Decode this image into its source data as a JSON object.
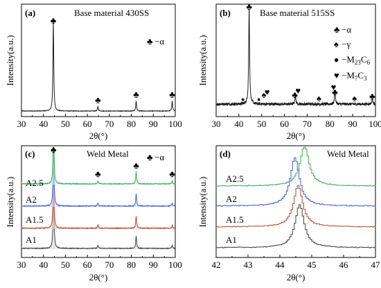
{
  "colors": {
    "black": "#1a1a1a",
    "A1": "#404040",
    "A1.5": "#b5492f",
    "A2": "#3b5fd6",
    "A2.5": "#3ea85a",
    "fill_A1": "#d9d9d9",
    "fill_A1.5": "#f6d4c9",
    "fill_A2": "#d3dcf8",
    "fill_A2.5": "#d3f1db"
  },
  "marker_symbols": {
    "alpha": "♣",
    "gamma": "♠",
    "m23c6": "●",
    "m7c3": "♥"
  },
  "chart_data": [
    {
      "id": "a",
      "type": "line",
      "panel_label": "(a)",
      "title": "Base material 430SS",
      "xlabel": "2θ(°)",
      "ylabel": "Intensity(a.u.)",
      "xlim": [
        30,
        100
      ],
      "xticks": [
        "30",
        "40",
        "50",
        "60",
        "70",
        "80",
        "90",
        "100"
      ],
      "legend": [
        {
          "symbol": "♣",
          "text": "−α"
        }
      ],
      "peaks": [
        {
          "x": 44.5,
          "height": 1.0,
          "phase": "alpha"
        },
        {
          "x": 64.8,
          "height": 0.05,
          "phase": "alpha"
        },
        {
          "x": 82.2,
          "height": 0.11,
          "phase": "alpha"
        },
        {
          "x": 98.6,
          "height": 0.11,
          "phase": "alpha"
        }
      ],
      "markers": [
        {
          "x": 44.5,
          "symbol": "♣"
        },
        {
          "x": 64.8,
          "symbol": "♣"
        },
        {
          "x": 82.2,
          "symbol": "♣"
        },
        {
          "x": 98.6,
          "symbol": "♣"
        }
      ]
    },
    {
      "id": "b",
      "type": "line",
      "panel_label": "(b)",
      "title": "Base material 515SS",
      "xlabel": "2θ(°)",
      "ylabel": "Intensity(a.u.)",
      "xlim": [
        30,
        100
      ],
      "xticks": [
        "30",
        "40",
        "50",
        "60",
        "70",
        "80",
        "90",
        "100"
      ],
      "legend": [
        {
          "symbol": "♣",
          "text": "−α"
        },
        {
          "symbol": "♠",
          "text": "−γ"
        },
        {
          "symbol": "●",
          "text": "−M",
          "sub": "23",
          "text2": "C",
          "sub2": "6"
        },
        {
          "symbol": "♥",
          "text": "−M",
          "sub": "7",
          "text2": "C",
          "sub2": "3"
        }
      ],
      "peaks": [
        {
          "x": 44.5,
          "height": 1.0,
          "phase": "alpha"
        },
        {
          "x": 64.8,
          "height": 0.09,
          "phase": "alpha"
        },
        {
          "x": 82.2,
          "height": 0.14,
          "phase": "alpha"
        },
        {
          "x": 98.6,
          "height": 0.06,
          "phase": "alpha"
        }
      ],
      "markers": [
        {
          "x": 44.5,
          "symbol": "♣"
        },
        {
          "x": 41.8,
          "symbol": "●"
        },
        {
          "x": 48.8,
          "symbol": "●"
        },
        {
          "x": 51.0,
          "symbol": "♠"
        },
        {
          "x": 52.4,
          "symbol": "♥"
        },
        {
          "x": 64.6,
          "symbol": "♣"
        },
        {
          "x": 66.0,
          "symbol": "♥"
        },
        {
          "x": 75.2,
          "symbol": "♠"
        },
        {
          "x": 81.6,
          "symbol": "♥"
        },
        {
          "x": 82.2,
          "symbol": "♣"
        },
        {
          "x": 90.8,
          "symbol": "♠"
        },
        {
          "x": 98.6,
          "symbol": "♣"
        }
      ]
    },
    {
      "id": "c",
      "type": "line",
      "panel_label": "(c)",
      "title": "Weld Metal",
      "xlabel": "2θ(°)",
      "ylabel": "Intensity(a.u.)",
      "xlim": [
        30,
        100
      ],
      "xticks": [
        "30",
        "40",
        "50",
        "60",
        "70",
        "80",
        "90",
        "100"
      ],
      "legend": [
        {
          "symbol": "♣",
          "text": "−α"
        }
      ],
      "series": [
        {
          "name": "A1",
          "color_key": "A1",
          "offset": 0.0
        },
        {
          "name": "A1.5",
          "color_key": "A1.5",
          "offset": 1.0
        },
        {
          "name": "A2",
          "color_key": "A2",
          "offset": 2.0
        },
        {
          "name": "A2.5",
          "color_key": "A2.5",
          "offset": 3.0
        }
      ],
      "peaks": [
        {
          "x": 44.6,
          "height": 1.0
        },
        {
          "x": 64.8,
          "height": 0.05
        },
        {
          "x": 82.2,
          "height": 0.2
        },
        {
          "x": 98.6,
          "height": 0.05
        }
      ],
      "markers": [
        {
          "x": 44.6,
          "symbol": "♣"
        },
        {
          "x": 64.8,
          "symbol": "♣"
        },
        {
          "x": 82.2,
          "symbol": "♣"
        },
        {
          "x": 98.6,
          "symbol": "♣"
        }
      ]
    },
    {
      "id": "d",
      "type": "line",
      "panel_label": "(d)",
      "title": "Weld Metal",
      "xlabel": "2θ(°)",
      "ylabel": "Intensity(a.u.)",
      "xlim": [
        42,
        47
      ],
      "xticks": [
        "42",
        "43",
        "44",
        "45",
        "46",
        "47"
      ],
      "series": [
        {
          "name": "A1",
          "color_key": "A1",
          "peak_x": 44.6,
          "offset": 0.0
        },
        {
          "name": "A1.5",
          "color_key": "A1.5",
          "peak_x": 44.55,
          "offset": 1.0
        },
        {
          "name": "A2",
          "color_key": "A2",
          "peak_x": 44.45,
          "offset": 2.0
        },
        {
          "name": "A2.5",
          "color_key": "A2.5",
          "peak_x": 44.75,
          "offset": 3.0
        }
      ]
    }
  ]
}
